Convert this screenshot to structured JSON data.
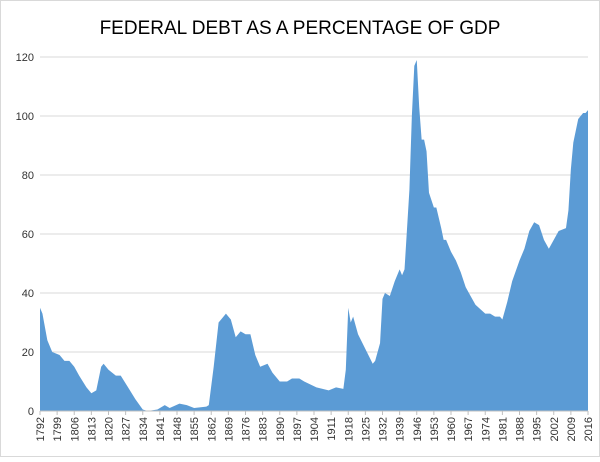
{
  "chart_data": {
    "type": "area",
    "title": "FEDERAL DEBT AS A PERCENTAGE OF GDP",
    "x": [
      1792,
      1793,
      1795,
      1797,
      1800,
      1802,
      1804,
      1806,
      1808,
      1811,
      1813,
      1815,
      1817,
      1818,
      1820,
      1823,
      1825,
      1828,
      1831,
      1834,
      1836,
      1840,
      1843,
      1845,
      1849,
      1852,
      1855,
      1860,
      1861,
      1863,
      1865,
      1867,
      1868,
      1870,
      1872,
      1874,
      1876,
      1878,
      1880,
      1882,
      1885,
      1887,
      1890,
      1893,
      1895,
      1898,
      1900,
      1905,
      1910,
      1913,
      1916,
      1917,
      1918,
      1919,
      1920,
      1922,
      1925,
      1928,
      1929,
      1931,
      1932,
      1933,
      1935,
      1937,
      1939,
      1940,
      1941,
      1943,
      1944,
      1945,
      1946,
      1947,
      1948,
      1949,
      1950,
      1951,
      1953,
      1954,
      1956,
      1957,
      1958,
      1960,
      1962,
      1964,
      1966,
      1968,
      1970,
      1974,
      1976,
      1978,
      1980,
      1981,
      1983,
      1985,
      1988,
      1990,
      1992,
      1994,
      1996,
      1998,
      2000,
      2002,
      2004,
      2007,
      2008,
      2009,
      2010,
      2012,
      2014,
      2015,
      2016
    ],
    "values": [
      35,
      33,
      24,
      20,
      19,
      17,
      17,
      15,
      12,
      8,
      6,
      7,
      15,
      16,
      14,
      12,
      12,
      8,
      4,
      0.5,
      0,
      0.5,
      2,
      1,
      2.5,
      2,
      1,
      1.5,
      2,
      15,
      30,
      32,
      33,
      31,
      25,
      27,
      26,
      26,
      19,
      15,
      16,
      13,
      10,
      10,
      11,
      11,
      10,
      8,
      7,
      8,
      7.5,
      14,
      35,
      30,
      32,
      26,
      21,
      16,
      17,
      23,
      38,
      40,
      39,
      44,
      48,
      46,
      48,
      75,
      100,
      117,
      119,
      103,
      92,
      92,
      88,
      74,
      69,
      69,
      62,
      58,
      58,
      54,
      51,
      47,
      42,
      39,
      36,
      33,
      33,
      32,
      32,
      31,
      37,
      44,
      51,
      55,
      61,
      64,
      63,
      58,
      55,
      58,
      61,
      62,
      68,
      82,
      91,
      99,
      101,
      101,
      102
    ],
    "color": "#5b9bd5",
    "xlim": [
      1792,
      2016
    ],
    "xticks": [
      1792,
      1799,
      1806,
      1813,
      1820,
      1827,
      1834,
      1841,
      1848,
      1855,
      1862,
      1869,
      1876,
      1883,
      1890,
      1897,
      1904,
      1911,
      1918,
      1925,
      1932,
      1939,
      1946,
      1953,
      1960,
      1967,
      1974,
      1981,
      1988,
      1995,
      2002,
      2009,
      2016
    ],
    "ylim": [
      0,
      120
    ],
    "yticks": [
      0,
      20,
      40,
      60,
      80,
      100,
      120
    ],
    "grid": true
  }
}
